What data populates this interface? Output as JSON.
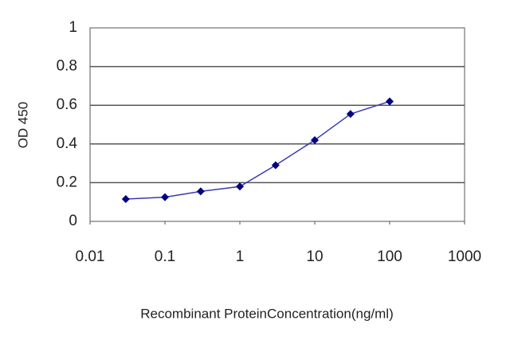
{
  "chart_data": {
    "type": "line",
    "x": [
      0.03,
      0.1,
      0.3,
      1,
      3,
      10,
      30,
      100
    ],
    "values": [
      0.115,
      0.125,
      0.155,
      0.18,
      0.29,
      0.42,
      0.555,
      0.62
    ],
    "color": "#3a3ab0",
    "marker_color": "#000080",
    "xlabel": "Recombinant ProteinConcentration(ng/ml)",
    "ylabel": "OD 450",
    "xscale": "log",
    "xlim": [
      0.01,
      1000
    ],
    "xticks": [
      0.01,
      0.1,
      1,
      10,
      100,
      1000
    ],
    "ylim": [
      0,
      1
    ],
    "yticks": [
      0,
      0.2,
      0.4,
      0.6,
      0.8,
      1
    ],
    "grid": true
  }
}
